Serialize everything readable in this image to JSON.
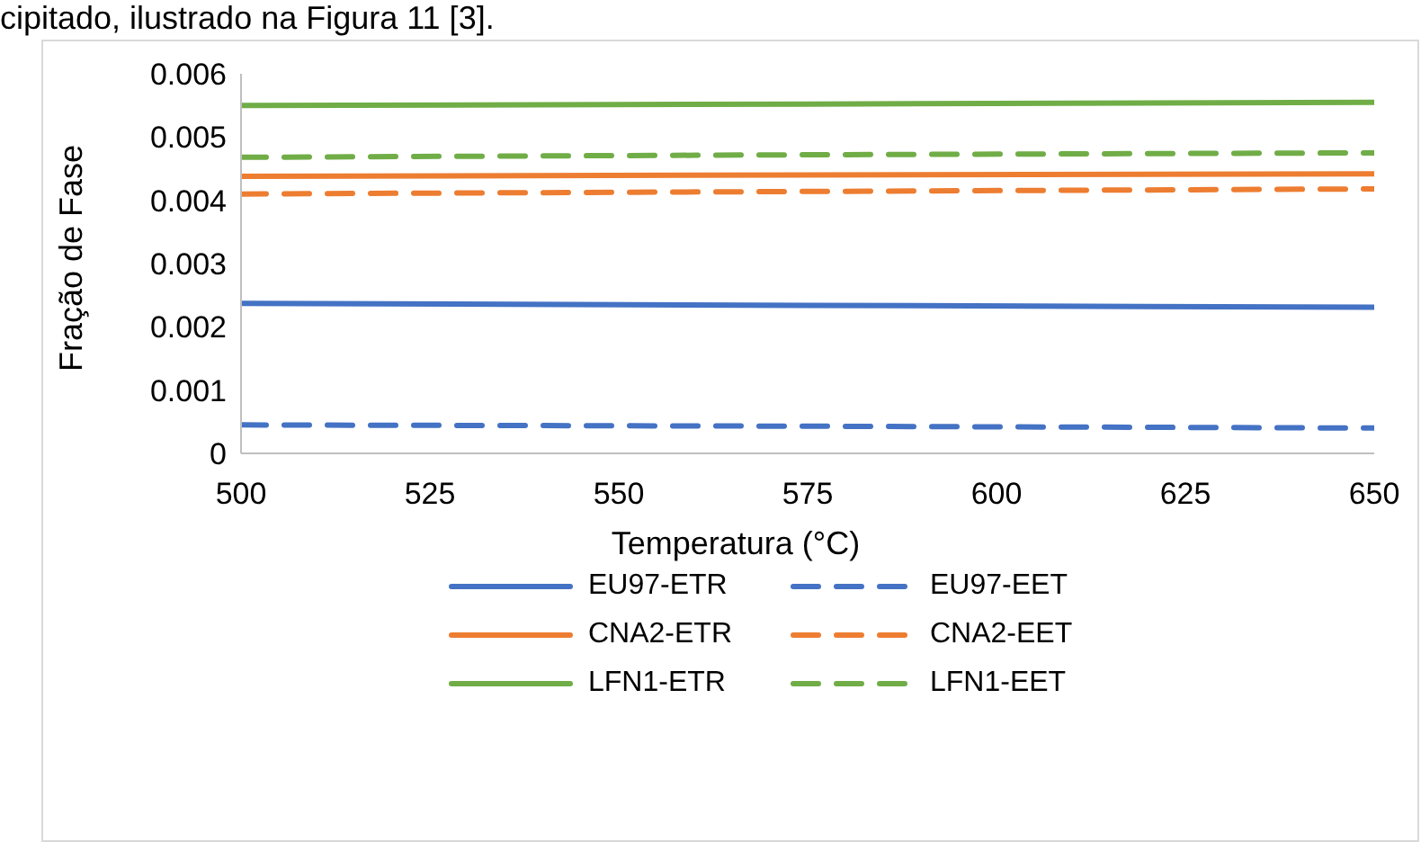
{
  "chart_data": {
    "type": "line",
    "annotations": [
      "cipitado, ilustrado na Figura 11 [3]."
    ],
    "xlabel": "Temperatura (°C)",
    "ylabel": "Fração de Fase",
    "x": [
      500,
      575,
      650
    ],
    "series": [
      {
        "name": "EU97-ETR",
        "color": "#4472c4",
        "line_style": "solid",
        "values": [
          0.00237,
          0.00234,
          0.00231
        ]
      },
      {
        "name": "EU97-EET",
        "color": "#4472c4",
        "line_style": "dashed",
        "values": [
          0.00045,
          0.00043,
          0.0004
        ]
      },
      {
        "name": "CNA2-ETR",
        "color": "#ed7d31",
        "line_style": "solid",
        "values": [
          0.00438,
          0.0044,
          0.00442
        ]
      },
      {
        "name": "CNA2-EET",
        "color": "#ed7d31",
        "line_style": "dashed",
        "values": [
          0.0041,
          0.00414,
          0.00418
        ]
      },
      {
        "name": "LFN1-ETR",
        "color": "#70ad47",
        "line_style": "solid",
        "values": [
          0.0055,
          0.00552,
          0.00555
        ]
      },
      {
        "name": "LFN1-EET",
        "color": "#70ad47",
        "line_style": "dashed",
        "values": [
          0.00468,
          0.00472,
          0.00475
        ]
      }
    ],
    "xlim": [
      500,
      650
    ],
    "xticks": [
      500,
      525,
      550,
      575,
      600,
      625,
      650
    ],
    "ylim": [
      0,
      0.006
    ],
    "yticks": [
      0,
      0.001,
      0.002,
      0.003,
      0.004,
      0.005,
      0.006
    ],
    "grid": false,
    "legend": "bottom",
    "marker": "none"
  }
}
